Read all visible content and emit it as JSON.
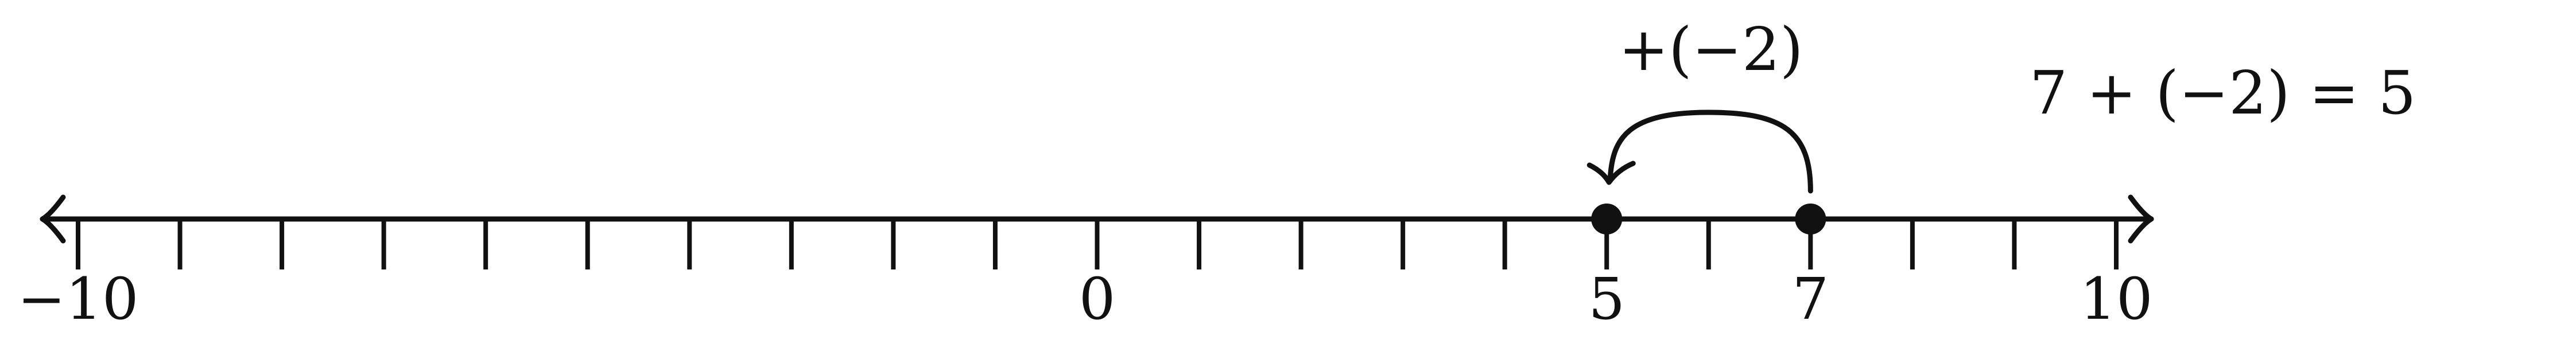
{
  "number_line": {
    "min": -10,
    "max": 10,
    "step": 1,
    "labeled_ticks": [
      {
        "value": -10,
        "text": "−10"
      },
      {
        "value": 0,
        "text": "0"
      },
      {
        "value": 5,
        "text": "5"
      },
      {
        "value": 7,
        "text": "7"
      },
      {
        "value": 10,
        "text": "10"
      }
    ]
  },
  "points": [
    {
      "value": 5
    },
    {
      "value": 7
    }
  ],
  "jump": {
    "from": 7,
    "to": 5,
    "label": "+(−2)"
  },
  "equation": "7 + (−2) = 5",
  "colors": {
    "line": "#111111",
    "point": "#111111",
    "text": "#111111"
  }
}
